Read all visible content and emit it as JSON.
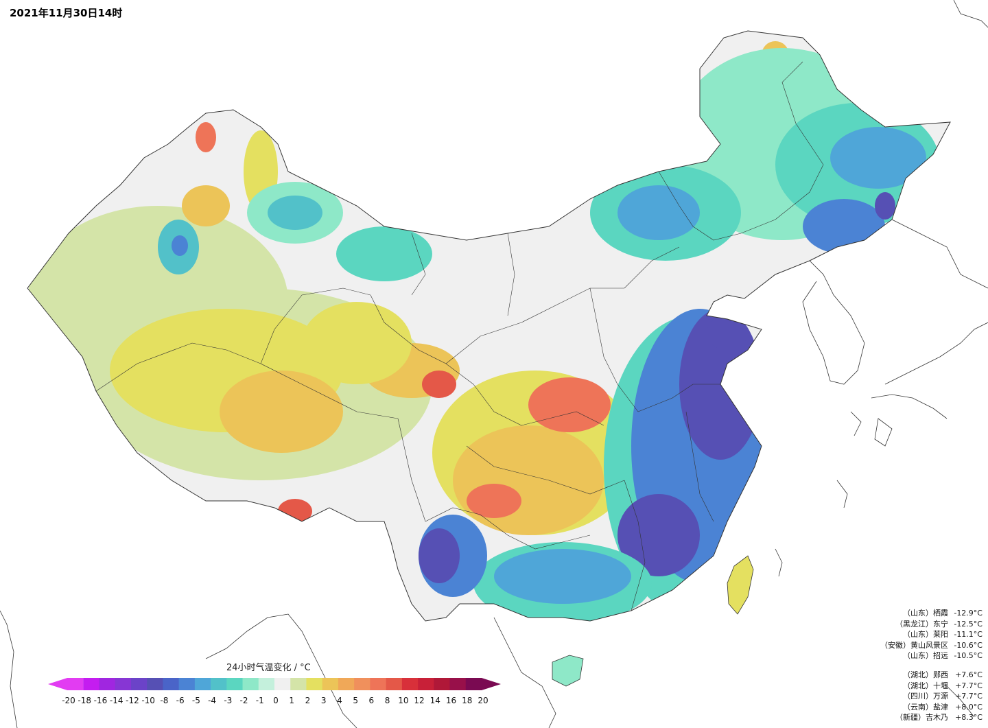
{
  "title": "2021年11月30日14时",
  "legend": {
    "title": "24小时气温变化 / °C",
    "ticks": [
      "-20",
      "-18",
      "-16",
      "-14",
      "-12",
      "-10",
      "-8",
      "-6",
      "-5",
      "-4",
      "-3",
      "-2",
      "-1",
      "0",
      "1",
      "2",
      "3",
      "4",
      "5",
      "6",
      "8",
      "10",
      "12",
      "14",
      "16",
      "18",
      "20"
    ],
    "colors": [
      "#e23cf2",
      "#c41df0",
      "#a026e0",
      "#8736d4",
      "#6b43c8",
      "#5650b4",
      "#4a64c8",
      "#4b83d4",
      "#4fa6d8",
      "#52c1c9",
      "#5bd6c0",
      "#8ee8c8",
      "#c4f0dc",
      "#f0f0f0",
      "#d4e4a8",
      "#e4e060",
      "#ecc458",
      "#f0a858",
      "#f0905c",
      "#ee7458",
      "#e45848",
      "#d8303a",
      "#c82038",
      "#b01838",
      "#98104a",
      "#7a0a52"
    ]
  },
  "drops": [
    {
      "province": "（山东）",
      "station": "栖霞",
      "value": "-12.9°C"
    },
    {
      "province": "（黑龙江）",
      "station": "东宁",
      "value": "-12.5°C"
    },
    {
      "province": "（山东）",
      "station": "莱阳",
      "value": "-11.1°C"
    },
    {
      "province": "（安徽）",
      "station": "黄山风景区",
      "value": "-10.6°C"
    },
    {
      "province": "（山东）",
      "station": "招远",
      "value": "-10.5°C"
    }
  ],
  "rises": [
    {
      "province": "（湖北）",
      "station": "郧西",
      "value": "+7.6°C"
    },
    {
      "province": "（湖北）",
      "station": "十堰",
      "value": "+7.7°C"
    },
    {
      "province": "（四川）",
      "station": "万源",
      "value": "+7.7°C"
    },
    {
      "province": "（云南）",
      "station": "盐津",
      "value": "+8.0°C"
    },
    {
      "province": "（新疆）",
      "station": "吉木乃",
      "value": "+8.3°C"
    }
  ]
}
